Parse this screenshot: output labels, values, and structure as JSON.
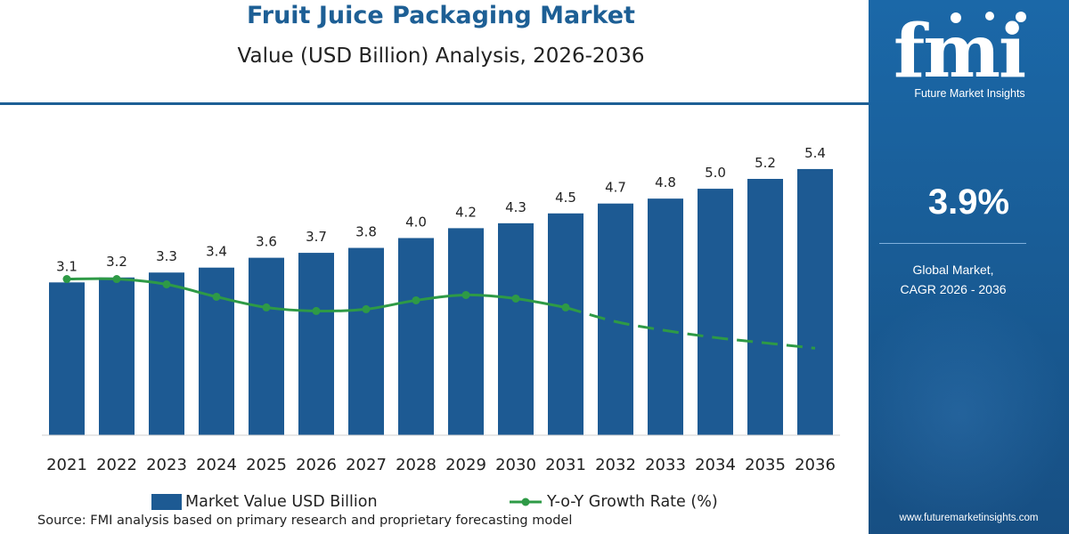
{
  "header": {
    "title": "Fruit Juice Packaging Market",
    "subtitle": "Value (USD Billion) Analysis, 2026-2036"
  },
  "legend": {
    "bar_label": "Market Value USD Billion",
    "line_label": "Y-o-Y Growth Rate (%)"
  },
  "source": "Source: FMI analysis based on primary research and proprietary forecasting model",
  "sidebar": {
    "logo_letters": "fmi",
    "logo_text": "Future Market Insights",
    "cagr_value": "3.9%",
    "cagr_caption_line1": "Global Market,",
    "cagr_caption_line2": "CAGR 2026 - 2036",
    "website": "www.futuremarketinsights.com"
  },
  "colors": {
    "bar": "#1d5a93",
    "line": "#2e9a46",
    "title": "#1d5f95",
    "sidebar": "#1b68a8"
  },
  "chart_data": {
    "type": "bar",
    "title": "Fruit Juice Packaging Market",
    "subtitle": "Value (USD Billion) Analysis, 2026-2036",
    "categories": [
      "2021",
      "2022",
      "2023",
      "2024",
      "2025",
      "2026",
      "2027",
      "2028",
      "2029",
      "2030",
      "2031",
      "2032",
      "2033",
      "2034",
      "2035",
      "2036"
    ],
    "series": [
      {
        "name": "Market Value USD Billion",
        "type": "bar",
        "values": [
          3.1,
          3.2,
          3.3,
          3.4,
          3.6,
          3.7,
          3.8,
          4.0,
          4.2,
          4.3,
          4.5,
          4.7,
          4.8,
          5.0,
          5.2,
          5.4
        ],
        "labels": [
          "3.1",
          "3.2",
          "3.3",
          "3.4",
          "3.6",
          "3.7",
          "3.8",
          "4.0",
          "4.2",
          "4.3",
          "4.5",
          "4.7",
          "4.8",
          "5.0",
          "5.2",
          "5.4"
        ]
      },
      {
        "name": "Y-o-Y Growth Rate (%)",
        "type": "line",
        "axis": "secondary",
        "values": [
          4.4,
          4.4,
          4.25,
          3.9,
          3.6,
          3.5,
          3.55,
          3.8,
          3.95,
          3.85,
          3.6,
          3.2,
          2.95,
          2.75,
          2.6,
          2.45
        ],
        "dashed_from": "2032"
      }
    ],
    "ylim": [
      0,
      6.5
    ],
    "y2lim": [
      0,
      8.5
    ],
    "grid": false,
    "legend_position": "bottom"
  }
}
